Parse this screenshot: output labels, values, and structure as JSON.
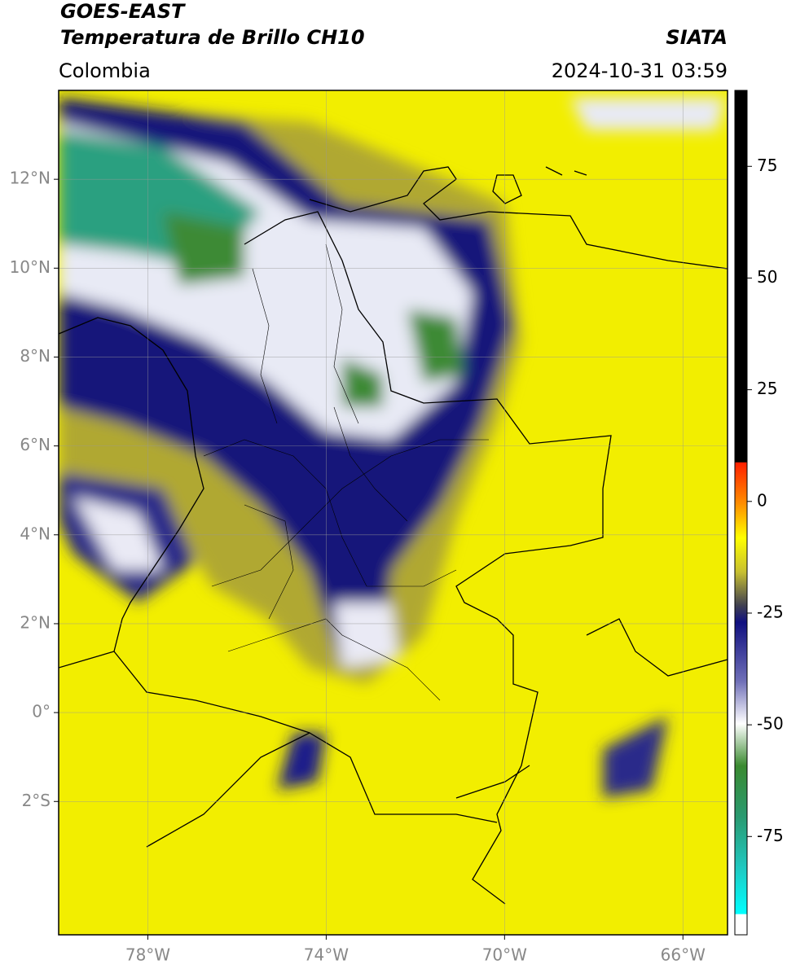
{
  "chart_data": {
    "type": "map",
    "title": "GOES-EAST",
    "subtitle": "Temperatura de Brillo CH10",
    "source": "SIATA",
    "region": "Colombia",
    "datetime": "2024-10-31 03:59",
    "xlim": [
      -80,
      -65
    ],
    "ylim": [
      -5,
      14
    ],
    "xticks": [
      {
        "value": -78,
        "label": "78°W"
      },
      {
        "value": -74,
        "label": "74°W"
      },
      {
        "value": -70,
        "label": "70°W"
      },
      {
        "value": -66,
        "label": "66°W"
      }
    ],
    "yticks": [
      {
        "value": 12,
        "label": "12°N"
      },
      {
        "value": 10,
        "label": "10°N"
      },
      {
        "value": 8,
        "label": "8°N"
      },
      {
        "value": 6,
        "label": "6°N"
      },
      {
        "value": 4,
        "label": "4°N"
      },
      {
        "value": 2,
        "label": "2°N"
      },
      {
        "value": 0,
        "label": "0°"
      },
      {
        "value": -2,
        "label": "2°S"
      }
    ],
    "grid": true,
    "colorbar": {
      "lim": [
        -97,
        92
      ],
      "ticks": [
        75,
        50,
        25,
        0,
        -25,
        -50,
        -75
      ]
    }
  }
}
